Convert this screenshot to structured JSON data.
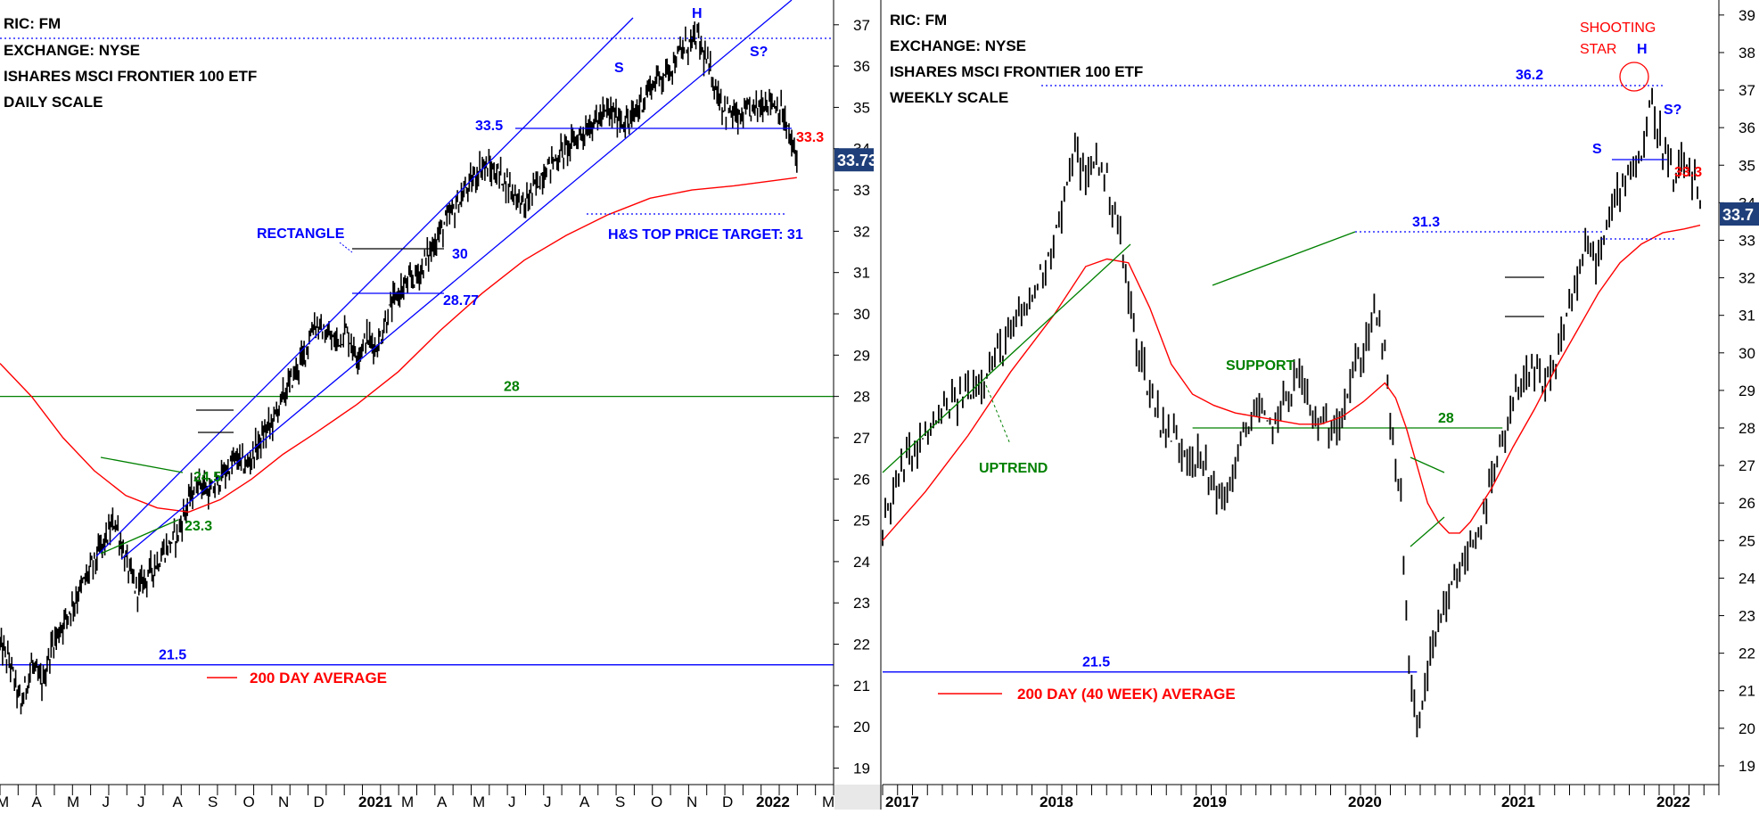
{
  "colors": {
    "bar": "#000000",
    "ma": "#ff0000",
    "blue": "#0000ff",
    "green": "#008000",
    "red": "#ff0000",
    "price_box": "#1f3f7a",
    "axis": "#000000"
  },
  "chart_data": [
    {
      "type": "ohlc",
      "info": [
        "RIC: FM",
        "EXCHANGE: NYSE",
        "ISHARES MSCI FRONTIER 100 ETF",
        "DAILY SCALE"
      ],
      "y_ticks": [
        19,
        20,
        21,
        22,
        23,
        24,
        25,
        26,
        27,
        28,
        29,
        30,
        31,
        32,
        33,
        34,
        35,
        36,
        37
      ],
      "ylim": [
        18.6,
        37.6
      ],
      "x_labels": [
        "M",
        "A",
        "M",
        "J",
        "J",
        "A",
        "S",
        "O",
        "N",
        "D",
        "2021",
        "M",
        "A",
        "M",
        "J",
        "J",
        "A",
        "S",
        "O",
        "N",
        "D",
        "2022",
        "M"
      ],
      "last_price": "33.73",
      "legend_label": "200 DAY AVERAGE",
      "price_points": [
        [
          0,
          22
        ],
        [
          2,
          21.5
        ],
        [
          4,
          20.5
        ],
        [
          6,
          21.5
        ],
        [
          8,
          21
        ],
        [
          10,
          22
        ],
        [
          14,
          23
        ],
        [
          18,
          24
        ],
        [
          22,
          25
        ],
        [
          24,
          24
        ],
        [
          26,
          23.3
        ],
        [
          30,
          24
        ],
        [
          34,
          24.7
        ],
        [
          36,
          25.5
        ],
        [
          38,
          26
        ],
        [
          40,
          25.6
        ],
        [
          42,
          26
        ],
        [
          45,
          26.5
        ],
        [
          47,
          26.3
        ],
        [
          50,
          27
        ],
        [
          52,
          27.4
        ],
        [
          54,
          28
        ],
        [
          56,
          28.5
        ],
        [
          58,
          29
        ],
        [
          60,
          29.8
        ],
        [
          62,
          29.5
        ],
        [
          64,
          29.3
        ],
        [
          66,
          29.6
        ],
        [
          68,
          29.0
        ],
        [
          70,
          29.4
        ],
        [
          72,
          29.2
        ],
        [
          74,
          30
        ],
        [
          76,
          30.5
        ],
        [
          80,
          31
        ],
        [
          84,
          32
        ],
        [
          88,
          32.8
        ],
        [
          92,
          33.6
        ],
        [
          96,
          33.3
        ],
        [
          100,
          32.6
        ],
        [
          104,
          33.5
        ],
        [
          108,
          34
        ],
        [
          112,
          34.5
        ],
        [
          116,
          34.9
        ],
        [
          120,
          34.6
        ],
        [
          124,
          35.5
        ],
        [
          128,
          36
        ],
        [
          131,
          36.5
        ],
        [
          133,
          36.7
        ],
        [
          135,
          36
        ],
        [
          138,
          35
        ],
        [
          141,
          34.7
        ],
        [
          144,
          35
        ],
        [
          147,
          35.2
        ],
        [
          149,
          34.9
        ],
        [
          150,
          34.5
        ],
        [
          152,
          33.7
        ]
      ],
      "ma_points": [
        [
          0,
          28.8
        ],
        [
          6,
          28
        ],
        [
          12,
          27
        ],
        [
          18,
          26.2
        ],
        [
          24,
          25.6
        ],
        [
          30,
          25.3
        ],
        [
          36,
          25.2
        ],
        [
          42,
          25.5
        ],
        [
          48,
          26
        ],
        [
          54,
          26.6
        ],
        [
          60,
          27.1
        ],
        [
          68,
          27.8
        ],
        [
          76,
          28.6
        ],
        [
          84,
          29.6
        ],
        [
          92,
          30.5
        ],
        [
          100,
          31.3
        ],
        [
          108,
          31.9
        ],
        [
          116,
          32.4
        ],
        [
          124,
          32.8
        ],
        [
          132,
          33.0
        ],
        [
          140,
          33.1
        ],
        [
          146,
          33.2
        ],
        [
          152,
          33.3
        ]
      ],
      "x_max": 159,
      "hlines": [
        {
          "y": 21.5,
          "color": "blue",
          "label": "21.5",
          "x1": 0,
          "x2": 159
        },
        {
          "y": 28,
          "color": "green",
          "label": "28",
          "x1": 0,
          "x2": 159
        }
      ],
      "annotations": [
        "S",
        "H",
        "S?",
        "33.5",
        "RECTANGLE",
        "30",
        "28.77",
        "24.5",
        "23.3",
        "H&S TOP PRICE TARGET: 31",
        "33.3"
      ]
    },
    {
      "type": "ohlc",
      "info": [
        "RIC: FM",
        "EXCHANGE: NYSE",
        "ISHARES MSCI FRONTIER 100 ETF",
        "WEEKLY SCALE"
      ],
      "y_ticks": [
        19,
        20,
        21,
        22,
        23,
        24,
        25,
        26,
        27,
        28,
        29,
        30,
        31,
        32,
        33,
        34,
        35,
        36,
        37,
        38,
        39
      ],
      "ylim": [
        18.5,
        39.4
      ],
      "x_labels": [
        "2017",
        "2018",
        "2019",
        "2020",
        "2021",
        "2022"
      ],
      "last_price": "33.7",
      "legend_label": "200 DAY (40 WEEK) AVERAGE",
      "price_points": [
        [
          0,
          25.5
        ],
        [
          4,
          27
        ],
        [
          8,
          27.8
        ],
        [
          12,
          28.5
        ],
        [
          16,
          29
        ],
        [
          20,
          29.6
        ],
        [
          24,
          30.5
        ],
        [
          28,
          31.5
        ],
        [
          32,
          33
        ],
        [
          34,
          34
        ],
        [
          36,
          35.5
        ],
        [
          38,
          34.5
        ],
        [
          40,
          35.3
        ],
        [
          42,
          34.5
        ],
        [
          44,
          33.5
        ],
        [
          46,
          31.5
        ],
        [
          48,
          30
        ],
        [
          50,
          29
        ],
        [
          52,
          28.2
        ],
        [
          56,
          27.5
        ],
        [
          60,
          27
        ],
        [
          62,
          26.5
        ],
        [
          64,
          26
        ],
        [
          66,
          27
        ],
        [
          68,
          28
        ],
        [
          70,
          28.5
        ],
        [
          72,
          28
        ],
        [
          74,
          28.3
        ],
        [
          76,
          29
        ],
        [
          78,
          29.5
        ],
        [
          80,
          28.5
        ],
        [
          82,
          28
        ],
        [
          84,
          28
        ],
        [
          86,
          28.5
        ],
        [
          88,
          29.4
        ],
        [
          90,
          30
        ],
        [
          92,
          31.2
        ],
        [
          94,
          30
        ],
        [
          95,
          28
        ],
        [
          96,
          27.2
        ],
        [
          97,
          26
        ],
        [
          98,
          23
        ],
        [
          99,
          21
        ],
        [
          100,
          20
        ],
        [
          102,
          21.5
        ],
        [
          104,
          22.5
        ],
        [
          106,
          23.5
        ],
        [
          108,
          24.2
        ],
        [
          110,
          24.8
        ],
        [
          112,
          25.5
        ],
        [
          114,
          26.5
        ],
        [
          116,
          27.5
        ],
        [
          118,
          28.5
        ],
        [
          120,
          29.5
        ],
        [
          122,
          29.4
        ],
        [
          124,
          29
        ],
        [
          126,
          29.7
        ],
        [
          128,
          31
        ],
        [
          130,
          32
        ],
        [
          132,
          32.8
        ],
        [
          134,
          32.5
        ],
        [
          136,
          33.5
        ],
        [
          138,
          34.5
        ],
        [
          140,
          35
        ],
        [
          142,
          35.2
        ],
        [
          143,
          36
        ],
        [
          144,
          36.6
        ],
        [
          146,
          35.5
        ],
        [
          148,
          34.5
        ],
        [
          150,
          35
        ],
        [
          152,
          34.5
        ],
        [
          153,
          33.7
        ]
      ],
      "ma_points": [
        [
          0,
          25
        ],
        [
          8,
          26.3
        ],
        [
          16,
          27.8
        ],
        [
          24,
          29.5
        ],
        [
          32,
          31
        ],
        [
          38,
          32.3
        ],
        [
          42,
          32.5
        ],
        [
          46,
          32.4
        ],
        [
          50,
          31.2
        ],
        [
          54,
          29.7
        ],
        [
          58,
          28.9
        ],
        [
          62,
          28.6
        ],
        [
          66,
          28.4
        ],
        [
          70,
          28.3
        ],
        [
          74,
          28.2
        ],
        [
          78,
          28.1
        ],
        [
          82,
          28.1
        ],
        [
          86,
          28.3
        ],
        [
          90,
          28.7
        ],
        [
          94,
          29.2
        ],
        [
          96,
          28.8
        ],
        [
          98,
          28
        ],
        [
          100,
          27
        ],
        [
          102,
          26
        ],
        [
          104,
          25.5
        ],
        [
          106,
          25.2
        ],
        [
          108,
          25.2
        ],
        [
          110,
          25.5
        ],
        [
          114,
          26.4
        ],
        [
          118,
          27.5
        ],
        [
          122,
          28.5
        ],
        [
          126,
          29.6
        ],
        [
          130,
          30.6
        ],
        [
          134,
          31.6
        ],
        [
          138,
          32.4
        ],
        [
          142,
          32.9
        ],
        [
          146,
          33.2
        ],
        [
          150,
          33.3
        ],
        [
          153,
          33.4
        ]
      ],
      "x_max": 156,
      "hlines": [
        {
          "y": 21.5,
          "color": "blue",
          "label": "21.5",
          "x1": 0,
          "x2": 100
        },
        {
          "y": 28,
          "color": "green",
          "label": "28",
          "x1": 58,
          "x2": 116
        }
      ],
      "annotations": [
        "SHOOTING",
        "STAR",
        "H",
        "36.2",
        "S",
        "S?",
        "31.3",
        "SUPPORT",
        "UPTREND",
        "33.3"
      ]
    }
  ]
}
